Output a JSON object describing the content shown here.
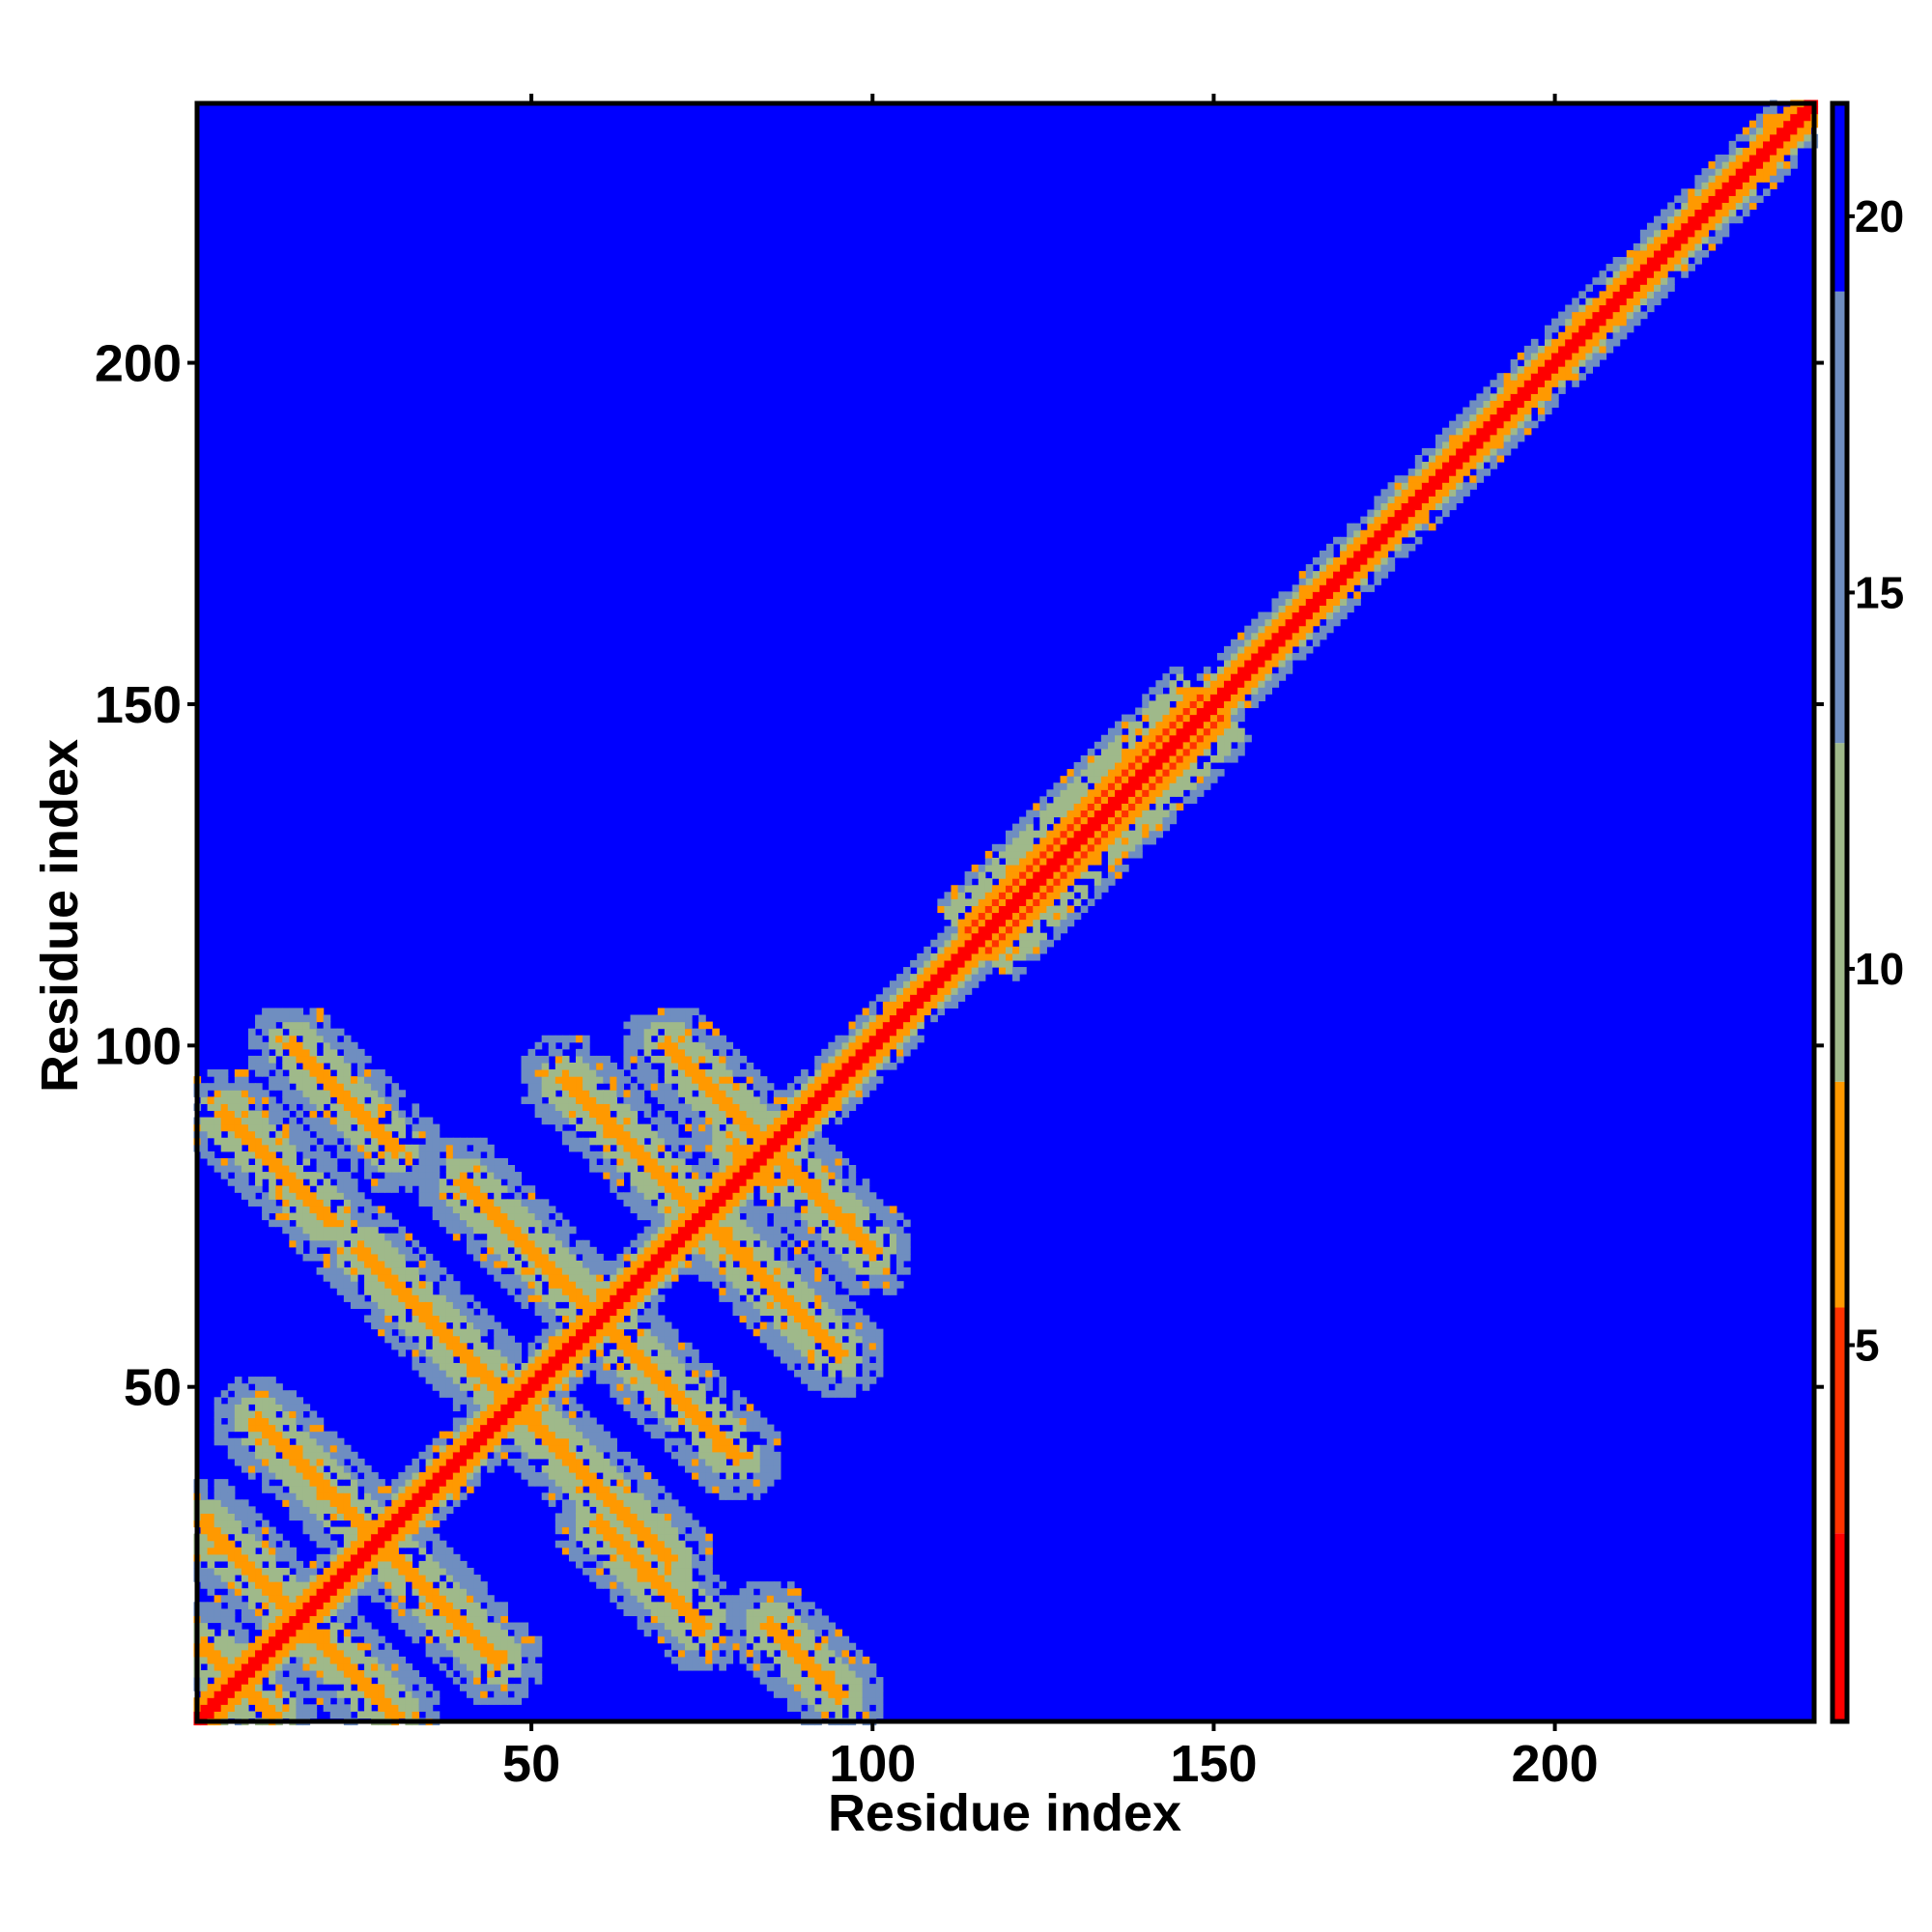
{
  "chart_data": {
    "type": "heatmap",
    "title": "",
    "xlabel": "Residue index",
    "ylabel": "Residue index",
    "xlim": [
      1,
      238
    ],
    "ylim": [
      1,
      238
    ],
    "x_ticks": [
      50,
      100,
      150,
      200
    ],
    "y_ticks": [
      50,
      100,
      150,
      200
    ],
    "x_tick_labels": [
      "50",
      "100",
      "150",
      "200"
    ],
    "y_tick_labels": [
      "50",
      "100",
      "150",
      "200"
    ],
    "n_residues": 238,
    "colorbar": {
      "range": [
        0,
        21.5
      ],
      "ticks": [
        5,
        10,
        15,
        20
      ],
      "tick_labels": [
        "5",
        "10",
        "15",
        "20"
      ],
      "bands": [
        {
          "from": 0,
          "to": 2.5,
          "color": "#ff0000"
        },
        {
          "from": 2.5,
          "to": 5.5,
          "color": "#ff3300"
        },
        {
          "from": 5.5,
          "to": 8.5,
          "color": "#ff9900"
        },
        {
          "from": 8.5,
          "to": 13,
          "color": "#9fb98a"
        },
        {
          "from": 13,
          "to": 19,
          "color": "#6f8ec0"
        },
        {
          "from": 19,
          "to": 21.5,
          "color": "#0000ff"
        }
      ]
    },
    "background_color": "#0000ff",
    "regions": {
      "diagonal_width_residues": 2,
      "near_diagonal_band_width_residues": 8,
      "beta_barrel_block": [
        1,
        105
      ],
      "antiparallel_contact_lines": [
        {
          "from": [
            2,
            12
          ],
          "to": [
            12,
            2
          ]
        },
        {
          "from": [
            2,
            30
          ],
          "to": [
            30,
            2
          ]
        },
        {
          "from": [
            10,
            45
          ],
          "to": [
            45,
            10
          ]
        },
        {
          "from": [
            25,
            70
          ],
          "to": [
            70,
            25
          ]
        },
        {
          "from": [
            40,
            80
          ],
          "to": [
            80,
            40
          ]
        },
        {
          "from": [
            55,
            95
          ],
          "to": [
            95,
            55
          ]
        },
        {
          "from": [
            70,
            100
          ],
          "to": [
            100,
            70
          ]
        },
        {
          "from": [
            80,
            85
          ],
          "to": [
            85,
            80
          ]
        },
        {
          "from": [
            5,
            90
          ],
          "to": [
            20,
            75
          ]
        },
        {
          "from": [
            15,
            100
          ],
          "to": [
            30,
            85
          ]
        },
        {
          "from": [
            60,
            30
          ],
          "to": [
            75,
            15
          ]
        },
        {
          "from": [
            85,
            15
          ],
          "to": [
            95,
            5
          ]
        }
      ],
      "helix_segment": [
        115,
        150
      ]
    }
  }
}
